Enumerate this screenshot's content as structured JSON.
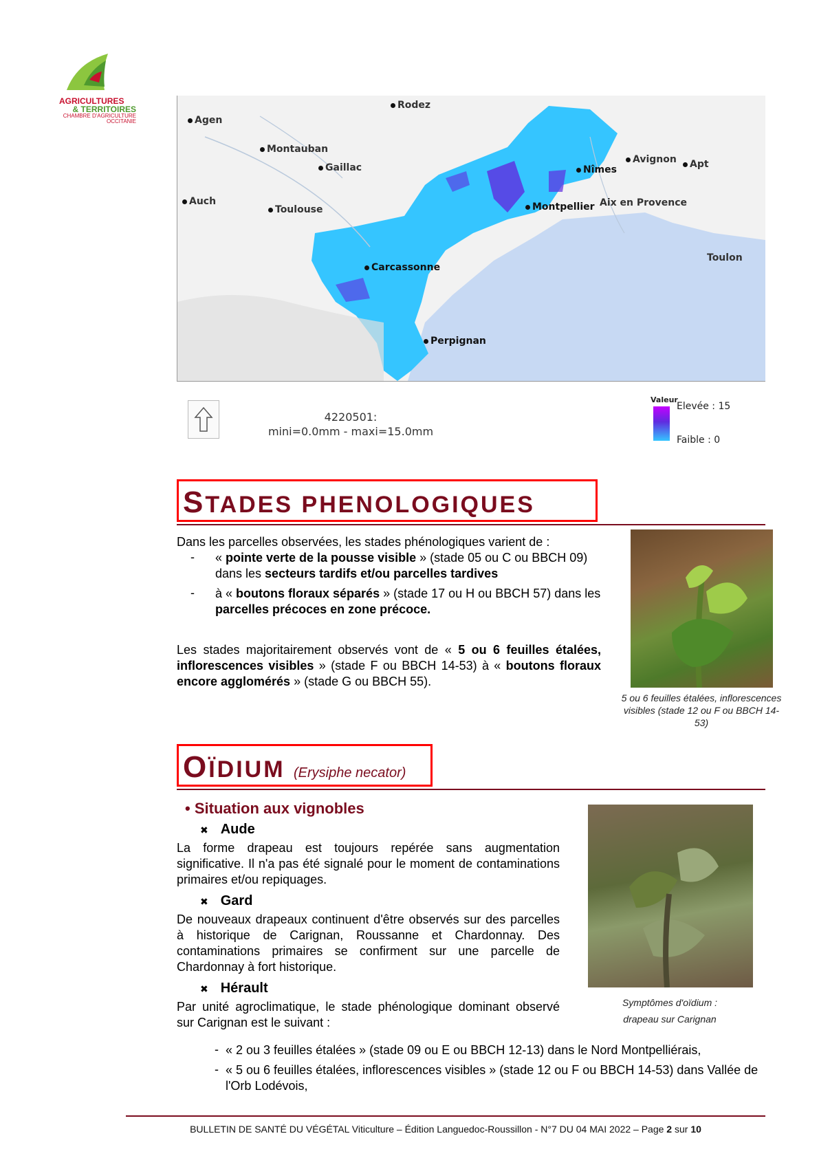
{
  "logo": {
    "line1": "AGRICULTURES",
    "line2": "& TERRITOIRES",
    "line3": "CHAMBRE D'AGRICULTURE",
    "line4": "OCCITANIE"
  },
  "map": {
    "cities": [
      "Agen",
      "Rodez",
      "Montauban",
      "Gaillac",
      "Avignon",
      "Apt",
      "Nîmes",
      "Auch",
      "Toulouse",
      "Montpellier",
      "Aix en Provence",
      "Toulon",
      "Carcassonne",
      "Perpignan"
    ],
    "id_line": "4220501:",
    "range_line": "mini=0.0mm  -  maxi=15.0mm",
    "legend_title": "Valeur",
    "legend_high": "Elevée : 15",
    "legend_low": "Faible : 0",
    "colors": {
      "high": "#c400ff",
      "mid": "#5f2ce0",
      "low": "#35c5ff",
      "sea": "#c7d9f3"
    }
  },
  "stades": {
    "title_cap": "S",
    "title_rest": "TADES PHENOLOGIQUES",
    "intro": "Dans les parcelles observées, les stades phénologiques varient de :",
    "items": [
      {
        "pre": "« ",
        "bold1": "pointe verte de la pousse visible",
        "mid": " » (stade 05 ou C ou BBCH 09) dans les ",
        "bold2": "secteurs tardifs et/ou parcelles tardives",
        "post": ""
      },
      {
        "pre": "à « ",
        "bold1": "boutons floraux séparés",
        "mid": " » (stade 17 ou H ou BBCH 57) dans les ",
        "bold2": "parcelles précoces en zone précoce.",
        "post": ""
      }
    ],
    "para_pre": "Les stades majoritairement observés vont de « ",
    "para_b1": "5 ou 6 feuilles étalées, inflorescences visibles",
    "para_mid": " » (stade F ou BBCH 14-53) à « ",
    "para_b2": "boutons floraux encore agglomérés",
    "para_post": " » (stade G ou BBCH 55).",
    "photo_caption": "5 ou 6 feuilles étalées, inflorescences visibles (stade 12 ou F ou BBCH 14-53)"
  },
  "oidium": {
    "title_cap": "O",
    "title_rest": "ÏDIUM",
    "latin": "(Erysiphe necator)",
    "situation": "Situation aux vignobles",
    "aude_title": "Aude",
    "aude_text": "La forme drapeau est toujours repérée sans augmentation significative. Il n'a pas été signalé pour le moment de contaminations primaires et/ou repiquages.",
    "gard_title": "Gard",
    "gard_text": "De nouveaux drapeaux continuent d'être observés sur des parcelles à historique de Carignan, Roussanne et Chardonnay. Des contaminations primaires se confirment sur une parcelle de Chardonnay à fort historique.",
    "herault_title": "Hérault",
    "herault_text": "Par unité agroclimatique, le stade phénologique dominant observé sur Carignan est le suivant :",
    "herault_items": [
      "« 2 ou 3 feuilles étalées » (stade 09 ou E ou BBCH 12-13) dans le Nord Montpelliérais,",
      "« 5 ou 6 feuilles étalées, inflorescences visibles » (stade 12 ou F ou BBCH 14-53) dans Vallée de l'Orb Lodévois,"
    ],
    "photo_caption1": "Symptômes d'oïdium :",
    "photo_caption2": "drapeau sur Carignan"
  },
  "footer": {
    "text": "BULLETIN DE SANTÉ DU VÉGÉTAL Viticulture – Édition Languedoc-Roussillon - N°7 DU 04 MAI 2022 – Page ",
    "page": "2",
    "sep": " sur ",
    "total": "10"
  }
}
